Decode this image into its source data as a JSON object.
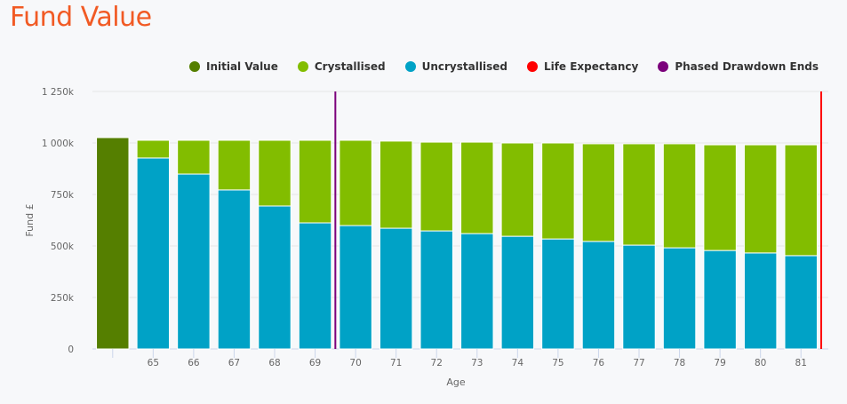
{
  "title": "Fund Value",
  "legend": [
    {
      "label": "Initial Value",
      "color": "#557f00",
      "icon": "circle-marker"
    },
    {
      "label": "Crystallised",
      "color": "#82bd00",
      "icon": "circle-marker"
    },
    {
      "label": "Uncrystallised",
      "color": "#00a2c6",
      "icon": "circle-marker"
    },
    {
      "label": "Life Expectancy",
      "color": "#ff0000",
      "icon": "circle-marker"
    },
    {
      "label": "Phased Drawdown Ends",
      "color": "#7b007b",
      "icon": "circle-marker"
    }
  ],
  "chart_data": {
    "type": "bar",
    "stacked": true,
    "title": "Fund Value",
    "xlabel": "Age",
    "ylabel": "Fund £",
    "ylim": [
      0,
      1250
    ],
    "yunit": "k",
    "yticks": [
      "0",
      "250k",
      "500k",
      "750k",
      "1 000k",
      "1 250k"
    ],
    "ytick_values": [
      0,
      250,
      500,
      750,
      1000,
      1250
    ],
    "grid": true,
    "legend_position": "top-right",
    "categories": [
      "",
      "65",
      "66",
      "67",
      "68",
      "69",
      "70",
      "71",
      "72",
      "73",
      "74",
      "75",
      "76",
      "77",
      "78",
      "79",
      "80",
      "81"
    ],
    "series": [
      {
        "name": "Initial Value",
        "color": "#557f00",
        "values": [
          1026,
          0,
          0,
          0,
          0,
          0,
          0,
          0,
          0,
          0,
          0,
          0,
          0,
          0,
          0,
          0,
          0,
          0
        ]
      },
      {
        "name": "Uncrystallised",
        "color": "#00a2c6",
        "values": [
          0,
          927,
          849,
          772,
          694,
          612,
          599,
          586,
          573,
          560,
          547,
          534,
          522,
          504,
          491,
          478,
          466,
          453
        ]
      },
      {
        "name": "Crystallised",
        "color": "#82bd00",
        "values": [
          0,
          86,
          164,
          241,
          319,
          401,
          414,
          423,
          431,
          444,
          453,
          466,
          474,
          492,
          505,
          513,
          525,
          538
        ]
      }
    ],
    "markers": [
      {
        "name": "Phased Drawdown Ends",
        "color": "#7b007b",
        "between": [
          "69",
          "70"
        ]
      },
      {
        "name": "Life Expectancy",
        "color": "#ff0000",
        "after": "81"
      }
    ]
  }
}
